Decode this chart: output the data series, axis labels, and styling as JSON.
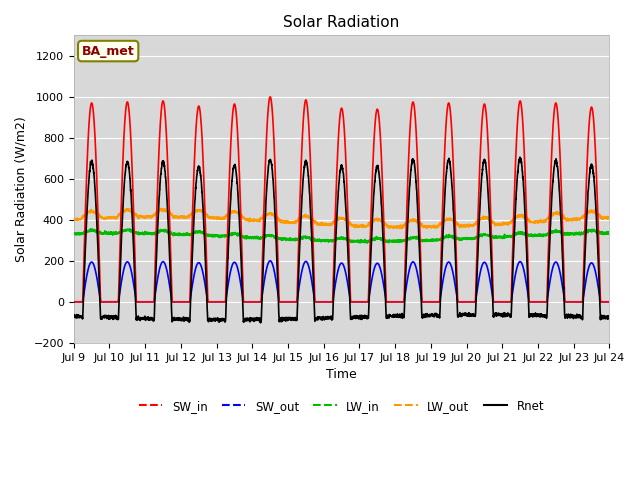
{
  "title": "Solar Radiation",
  "xlabel": "Time",
  "ylabel": "Solar Radiation (W/m2)",
  "ylim": [
    -200,
    1300
  ],
  "yticks": [
    -200,
    0,
    200,
    400,
    600,
    800,
    1000,
    1200
  ],
  "start_day": 9,
  "end_day": 24,
  "n_points": 3600,
  "fig_facecolor": "#ffffff",
  "plot_bg_color": "#d8d8d8",
  "series": {
    "SW_in": {
      "color": "#ff0000",
      "lw": 1.2
    },
    "SW_out": {
      "color": "#0000ff",
      "lw": 1.2
    },
    "LW_in": {
      "color": "#00bb00",
      "lw": 1.2
    },
    "LW_out": {
      "color": "#ff9900",
      "lw": 1.2
    },
    "Rnet": {
      "color": "#000000",
      "lw": 1.2
    }
  },
  "legend_labels": [
    "SW_in",
    "SW_out",
    "LW_in",
    "LW_out",
    "Rnet"
  ],
  "station_label": "BA_met",
  "title_fontsize": 11,
  "label_fontsize": 9,
  "tick_fontsize": 8
}
